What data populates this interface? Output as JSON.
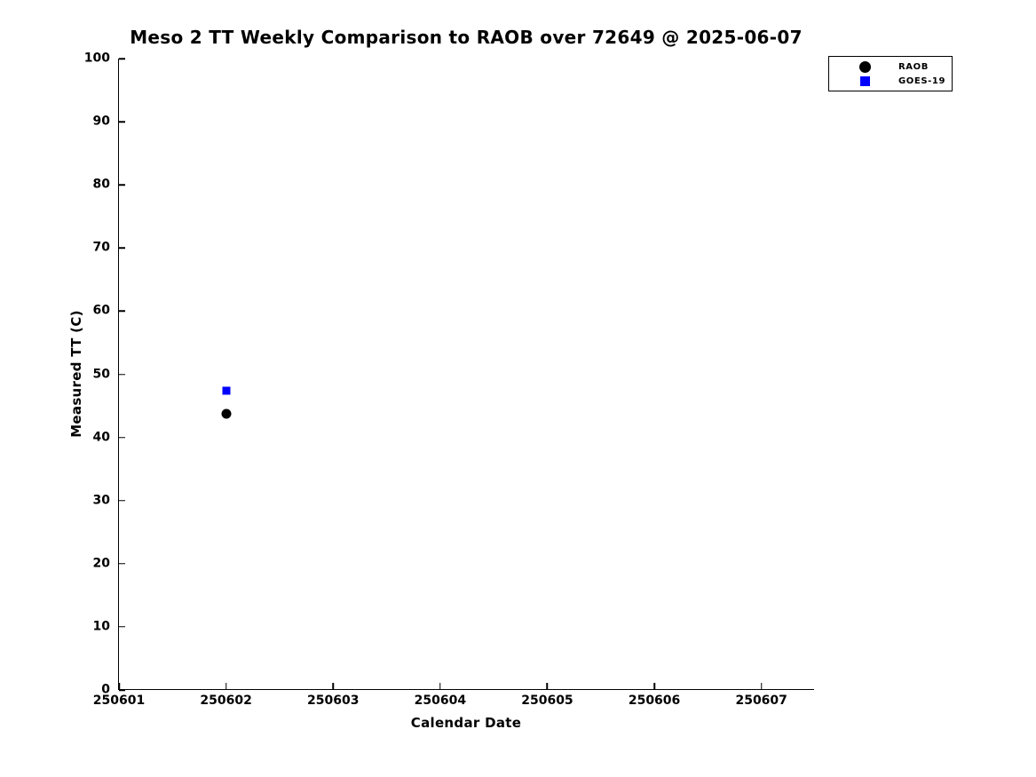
{
  "figure": {
    "background_color": "#ffffff",
    "text_color": "#000000"
  },
  "chart_data": {
    "type": "scatter",
    "title": "Meso 2 TT Weekly Comparison to RAOB over 72649 @ 2025-06-07",
    "xlabel": "Calendar Date",
    "ylabel": "Measured TT (C)",
    "xlim": [
      250601,
      250607.5
    ],
    "ylim": [
      0,
      100
    ],
    "grid": false,
    "x_ticks": [
      {
        "value": 250601,
        "label": "250601"
      },
      {
        "value": 250602,
        "label": "250602"
      },
      {
        "value": 250603,
        "label": "250603"
      },
      {
        "value": 250604,
        "label": "250604"
      },
      {
        "value": 250605,
        "label": "250605"
      },
      {
        "value": 250606,
        "label": "250606"
      },
      {
        "value": 250607,
        "label": "250607"
      }
    ],
    "y_ticks": [
      {
        "value": 0,
        "label": "0"
      },
      {
        "value": 10,
        "label": "10"
      },
      {
        "value": 20,
        "label": "20"
      },
      {
        "value": 30,
        "label": "30"
      },
      {
        "value": 40,
        "label": "40"
      },
      {
        "value": 50,
        "label": "50"
      },
      {
        "value": 60,
        "label": "60"
      },
      {
        "value": 70,
        "label": "70"
      },
      {
        "value": 80,
        "label": "80"
      },
      {
        "value": 90,
        "label": "90"
      },
      {
        "value": 100,
        "label": "100"
      }
    ],
    "legend": {
      "position": "top-right-outside",
      "entries": [
        {
          "label": "RAOB",
          "marker": "circle",
          "color": "#000000"
        },
        {
          "label": "GOES-19",
          "marker": "square",
          "color": "#0000ff"
        }
      ]
    },
    "series": [
      {
        "name": "RAOB",
        "marker": "circle",
        "color": "#000000",
        "points": [
          {
            "x": 250602,
            "y": 43.8
          }
        ]
      },
      {
        "name": "GOES-19",
        "marker": "square",
        "color": "#0000ff",
        "points": [
          {
            "x": 250602,
            "y": 47.4
          }
        ]
      }
    ]
  }
}
